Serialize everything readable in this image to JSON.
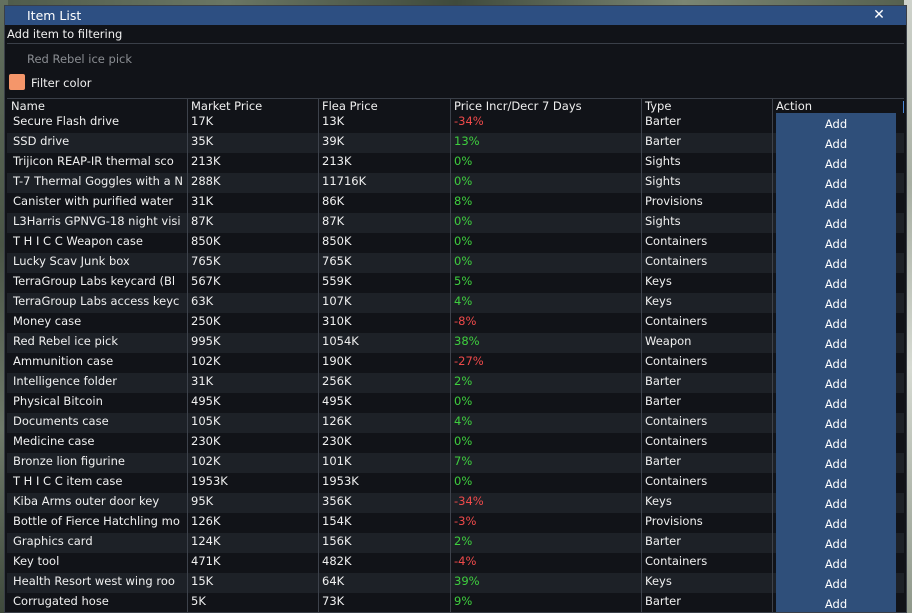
{
  "window": {
    "title": "Item List"
  },
  "filter": {
    "label": "Add item to filtering",
    "input_value": "Red Rebel ice pick",
    "color_label": "Filter color",
    "color": "#f5966a"
  },
  "table": {
    "columns": [
      "Name",
      "Market Price",
      "Flea Price",
      "Price Incr/Decr 7 Days",
      "Type",
      "Action"
    ],
    "action_label": "Add",
    "rows": [
      {
        "name": "Secure Flash drive",
        "market": "17K",
        "flea": "13K",
        "change": "-34%",
        "type": "Barter"
      },
      {
        "name": "SSD drive",
        "market": "35K",
        "flea": "39K",
        "change": "13%",
        "type": "Barter"
      },
      {
        "name": "Trijicon REAP-IR thermal sco",
        "market": "213K",
        "flea": "213K",
        "change": "0%",
        "type": "Sights"
      },
      {
        "name": "T-7 Thermal Goggles with a N",
        "market": "288K",
        "flea": "11716K",
        "change": "0%",
        "type": "Sights"
      },
      {
        "name": "Canister with purified water",
        "market": "31K",
        "flea": "86K",
        "change": "8%",
        "type": "Provisions"
      },
      {
        "name": "L3Harris GPNVG-18 night visi",
        "market": "87K",
        "flea": "87K",
        "change": "0%",
        "type": "Sights"
      },
      {
        "name": "T H I C C Weapon case",
        "market": "850K",
        "flea": "850K",
        "change": "0%",
        "type": "Containers"
      },
      {
        "name": "Lucky Scav Junk box",
        "market": "765K",
        "flea": "765K",
        "change": "0%",
        "type": "Containers"
      },
      {
        "name": "TerraGroup Labs keycard (Bl",
        "market": "567K",
        "flea": "559K",
        "change": "5%",
        "type": "Keys"
      },
      {
        "name": "TerraGroup Labs access keyc",
        "market": "63K",
        "flea": "107K",
        "change": "4%",
        "type": "Keys"
      },
      {
        "name": "Money case",
        "market": "250K",
        "flea": "310K",
        "change": "-8%",
        "type": "Containers"
      },
      {
        "name": "Red Rebel ice pick",
        "market": "995K",
        "flea": "1054K",
        "change": "38%",
        "type": "Weapon"
      },
      {
        "name": "Ammunition case",
        "market": "102K",
        "flea": "190K",
        "change": "-27%",
        "type": "Containers"
      },
      {
        "name": "Intelligence folder",
        "market": "31K",
        "flea": "256K",
        "change": "2%",
        "type": "Barter"
      },
      {
        "name": "Physical Bitcoin",
        "market": "495K",
        "flea": "495K",
        "change": "0%",
        "type": "Barter"
      },
      {
        "name": "Documents case",
        "market": "105K",
        "flea": "126K",
        "change": "4%",
        "type": "Containers"
      },
      {
        "name": "Medicine case",
        "market": "230K",
        "flea": "230K",
        "change": "0%",
        "type": "Containers"
      },
      {
        "name": "Bronze lion figurine",
        "market": "102K",
        "flea": "101K",
        "change": "7%",
        "type": "Barter"
      },
      {
        "name": "T H I C C item case",
        "market": "1953K",
        "flea": "1953K",
        "change": "0%",
        "type": "Containers"
      },
      {
        "name": "Kiba Arms outer door key",
        "market": "95K",
        "flea": "356K",
        "change": "-34%",
        "type": "Keys"
      },
      {
        "name": "Bottle of Fierce Hatchling mo",
        "market": "126K",
        "flea": "154K",
        "change": "-3%",
        "type": "Provisions"
      },
      {
        "name": "Graphics card",
        "market": "124K",
        "flea": "156K",
        "change": "2%",
        "type": "Barter"
      },
      {
        "name": "Key tool",
        "market": "471K",
        "flea": "482K",
        "change": "-4%",
        "type": "Containers"
      },
      {
        "name": "Health Resort west wing roo",
        "market": "15K",
        "flea": "64K",
        "change": "39%",
        "type": "Keys"
      },
      {
        "name": "Corrugated hose",
        "market": "5K",
        "flea": "73K",
        "change": "9%",
        "type": "Barter"
      }
    ]
  }
}
